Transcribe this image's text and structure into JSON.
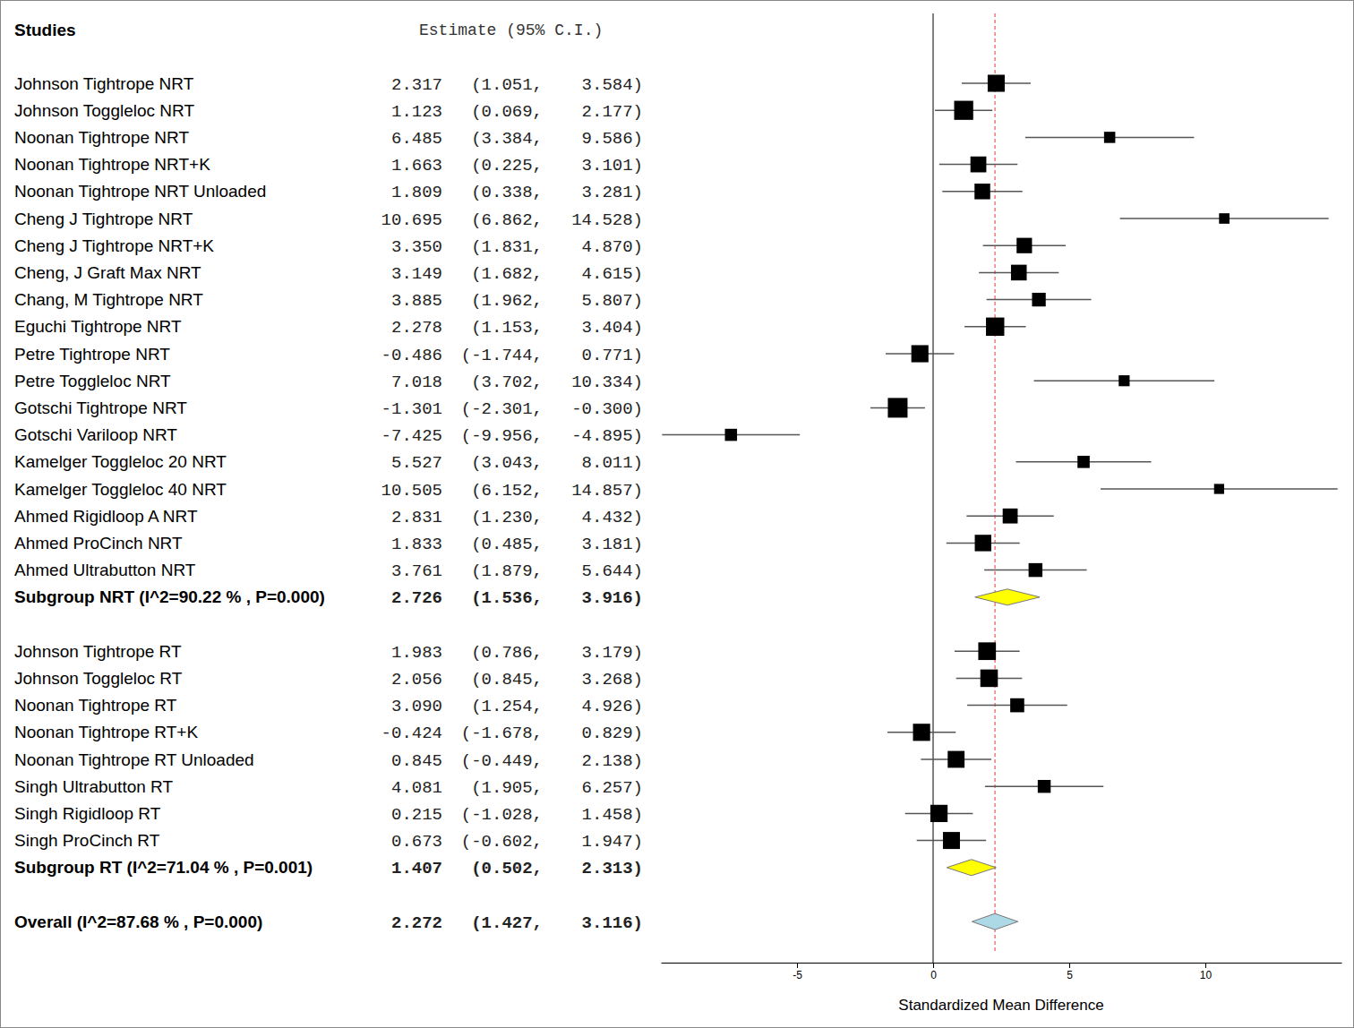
{
  "chart_data": {
    "type": "forest",
    "columns": [
      "Studies",
      "Estimate (95% C.I.)"
    ],
    "xlabel": "Standardized Mean Difference",
    "xlim": [
      -10,
      15
    ],
    "xticks": [
      -5,
      0,
      5,
      10
    ],
    "groups": [
      {
        "studies": [
          {
            "name": "Johnson Tightrope NRT",
            "estimate": 2.317,
            "lower": 1.051,
            "upper": 3.584,
            "labels": [
              "2.317",
              "(1.051,",
              "3.584)"
            ]
          },
          {
            "name": "Johnson Toggleloc NRT",
            "estimate": 1.123,
            "lower": 0.069,
            "upper": 2.177,
            "labels": [
              "1.123",
              "(0.069,",
              "2.177)"
            ]
          },
          {
            "name": "Noonan Tightrope NRT",
            "estimate": 6.485,
            "lower": 3.384,
            "upper": 9.586,
            "labels": [
              "6.485",
              "(3.384,",
              "9.586)"
            ]
          },
          {
            "name": "Noonan Tightrope NRT+K",
            "estimate": 1.663,
            "lower": 0.225,
            "upper": 3.101,
            "labels": [
              "1.663",
              "(0.225,",
              "3.101)"
            ]
          },
          {
            "name": "Noonan Tightrope NRT Unloaded",
            "estimate": 1.809,
            "lower": 0.338,
            "upper": 3.281,
            "labels": [
              "1.809",
              "(0.338,",
              "3.281)"
            ]
          },
          {
            "name": "Cheng J Tightrope NRT",
            "estimate": 10.695,
            "lower": 6.862,
            "upper": 14.528,
            "labels": [
              "10.695",
              "(6.862,",
              "14.528)"
            ]
          },
          {
            "name": "Cheng J Tightrope NRT+K",
            "estimate": 3.35,
            "lower": 1.831,
            "upper": 4.87,
            "labels": [
              "3.350",
              "(1.831,",
              "4.870)"
            ]
          },
          {
            "name": "Cheng, J Graft Max NRT",
            "estimate": 3.149,
            "lower": 1.682,
            "upper": 4.615,
            "labels": [
              "3.149",
              "(1.682,",
              "4.615)"
            ]
          },
          {
            "name": "Chang, M Tightrope NRT",
            "estimate": 3.885,
            "lower": 1.962,
            "upper": 5.807,
            "labels": [
              "3.885",
              "(1.962,",
              "5.807)"
            ]
          },
          {
            "name": "Eguchi Tightrope NRT",
            "estimate": 2.278,
            "lower": 1.153,
            "upper": 3.404,
            "labels": [
              "2.278",
              "(1.153,",
              "3.404)"
            ]
          },
          {
            "name": "Petre Tightrope NRT",
            "estimate": -0.486,
            "lower": -1.744,
            "upper": 0.771,
            "labels": [
              "-0.486",
              "(-1.744,",
              "0.771)"
            ]
          },
          {
            "name": "Petre Toggleloc NRT",
            "estimate": 7.018,
            "lower": 3.702,
            "upper": 10.334,
            "labels": [
              "7.018",
              "(3.702,",
              "10.334)"
            ]
          },
          {
            "name": "Gotschi Tightrope NRT",
            "estimate": -1.301,
            "lower": -2.301,
            "upper": -0.3,
            "labels": [
              "-1.301",
              "(-2.301,",
              "-0.300)"
            ]
          },
          {
            "name": "Gotschi Variloop NRT",
            "estimate": -7.425,
            "lower": -9.956,
            "upper": -4.895,
            "labels": [
              "-7.425",
              "(-9.956,",
              "-4.895)"
            ]
          },
          {
            "name": "Kamelger Toggleloc 20 NRT",
            "estimate": 5.527,
            "lower": 3.043,
            "upper": 8.011,
            "labels": [
              "5.527",
              "(3.043,",
              "8.011)"
            ]
          },
          {
            "name": "Kamelger Toggleloc 40 NRT",
            "estimate": 10.505,
            "lower": 6.152,
            "upper": 14.857,
            "labels": [
              "10.505",
              "(6.152,",
              "14.857)"
            ]
          },
          {
            "name": "Ahmed Rigidloop A NRT",
            "estimate": 2.831,
            "lower": 1.23,
            "upper": 4.432,
            "labels": [
              "2.831",
              "(1.230,",
              "4.432)"
            ]
          },
          {
            "name": "Ahmed ProCinch NRT",
            "estimate": 1.833,
            "lower": 0.485,
            "upper": 3.181,
            "labels": [
              "1.833",
              "(0.485,",
              "3.181)"
            ]
          },
          {
            "name": "Ahmed Ultrabutton NRT",
            "estimate": 3.761,
            "lower": 1.879,
            "upper": 5.644,
            "labels": [
              "3.761",
              "(1.879,",
              "5.644)"
            ]
          }
        ],
        "summary": {
          "name": "Subgroup NRT (I^2=90.22 % , P=0.000)",
          "estimate": 2.726,
          "lower": 1.536,
          "upper": 3.916,
          "labels": [
            "2.726",
            "(1.536,",
            "3.916)"
          ],
          "color": "#ffff00"
        }
      },
      {
        "studies": [
          {
            "name": "Johnson Tightrope RT",
            "estimate": 1.983,
            "lower": 0.786,
            "upper": 3.179,
            "labels": [
              "1.983",
              "(0.786,",
              "3.179)"
            ]
          },
          {
            "name": "Johnson Toggleloc RT",
            "estimate": 2.056,
            "lower": 0.845,
            "upper": 3.268,
            "labels": [
              "2.056",
              "(0.845,",
              "3.268)"
            ]
          },
          {
            "name": "Noonan Tightrope RT",
            "estimate": 3.09,
            "lower": 1.254,
            "upper": 4.926,
            "labels": [
              "3.090",
              "(1.254,",
              "4.926)"
            ]
          },
          {
            "name": "Noonan Tightrope RT+K",
            "estimate": -0.424,
            "lower": -1.678,
            "upper": 0.829,
            "labels": [
              "-0.424",
              "(-1.678,",
              "0.829)"
            ]
          },
          {
            "name": "Noonan Tightrope RT Unloaded",
            "estimate": 0.845,
            "lower": -0.449,
            "upper": 2.138,
            "labels": [
              "0.845",
              "(-0.449,",
              "2.138)"
            ]
          },
          {
            "name": "Singh Ultrabutton RT",
            "estimate": 4.081,
            "lower": 1.905,
            "upper": 6.257,
            "labels": [
              "4.081",
              "(1.905,",
              "6.257)"
            ]
          },
          {
            "name": "Singh Rigidloop RT",
            "estimate": 0.215,
            "lower": -1.028,
            "upper": 1.458,
            "labels": [
              "0.215",
              "(-1.028,",
              "1.458)"
            ]
          },
          {
            "name": "Singh ProCinch RT",
            "estimate": 0.673,
            "lower": -0.602,
            "upper": 1.947,
            "labels": [
              "0.673",
              "(-0.602,",
              "1.947)"
            ]
          }
        ],
        "summary": {
          "name": "Subgroup RT (I^2=71.04 % , P=0.001)",
          "estimate": 1.407,
          "lower": 0.502,
          "upper": 2.313,
          "labels": [
            "1.407",
            "(0.502,",
            "2.313)"
          ],
          "color": "#ffff00"
        }
      }
    ],
    "overall": {
      "name": "Overall (I^2=87.68 % , P=0.000)",
      "estimate": 2.272,
      "lower": 1.427,
      "upper": 3.116,
      "labels": [
        "2.272",
        "(1.427,",
        "3.116)"
      ],
      "color": "#add8e6"
    }
  }
}
